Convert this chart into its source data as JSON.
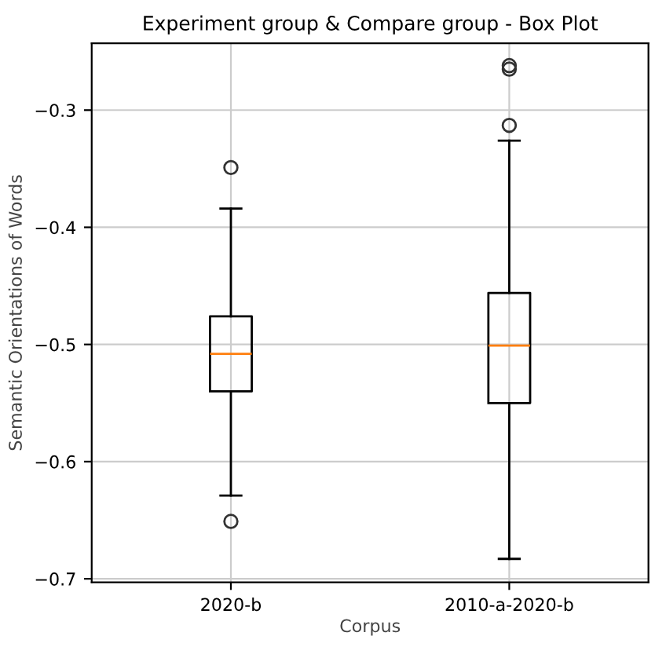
{
  "chart_data": {
    "type": "box",
    "title": "Experiment group & Compare group - Box Plot",
    "xlabel": "Corpus",
    "ylabel": "Semantic Orientations of Words",
    "categories": [
      "2020-b",
      "2010-a-2020-b"
    ],
    "boxes": [
      {
        "low": -0.629,
        "q1": -0.54,
        "median": -0.508,
        "q3": -0.476,
        "high": -0.384,
        "outliers": [
          -0.349,
          -0.651
        ]
      },
      {
        "low": -0.683,
        "q1": -0.55,
        "median": -0.501,
        "q3": -0.456,
        "high": -0.326,
        "outliers": [
          -0.313,
          -0.265,
          -0.262
        ]
      }
    ],
    "ylim": [
      -0.703,
      -0.243
    ],
    "yticks": [
      {
        "value": -0.3,
        "label": "−0.3"
      },
      {
        "value": -0.4,
        "label": "−0.4"
      },
      {
        "value": -0.5,
        "label": "−0.5"
      },
      {
        "value": -0.6,
        "label": "−0.6"
      },
      {
        "value": -0.7,
        "label": "−0.7"
      }
    ],
    "grid": true
  }
}
